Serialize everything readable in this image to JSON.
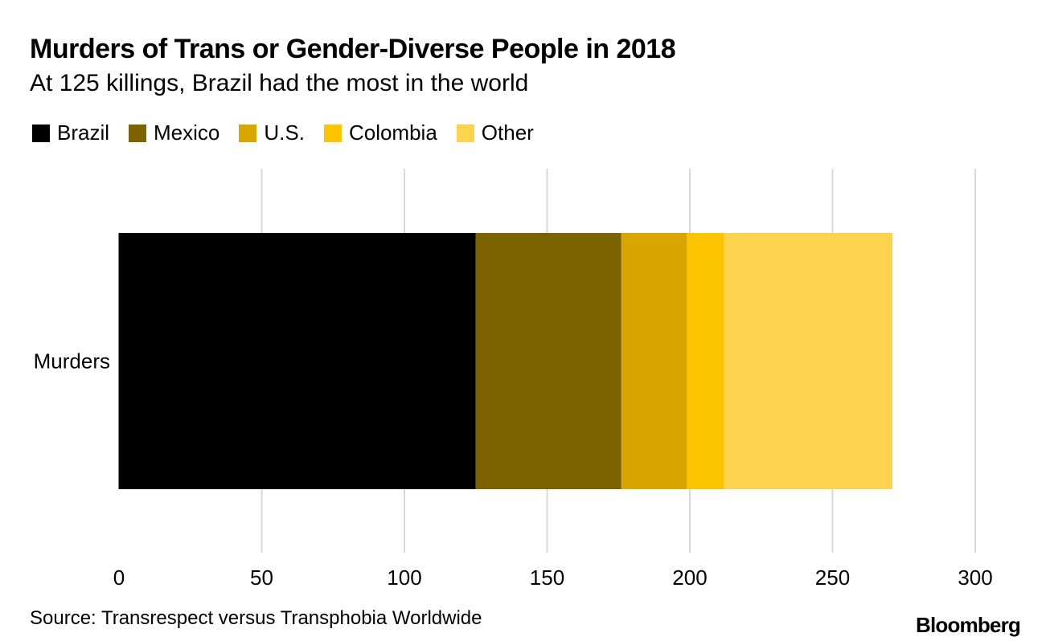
{
  "chart_data": {
    "type": "bar",
    "orientation": "horizontal",
    "stacked": true,
    "title": "Murders of Trans or Gender-Diverse People in 2018",
    "subtitle": "At 125 killings, Brazil had the most in the world",
    "categories": [
      "Murders"
    ],
    "series": [
      {
        "name": "Brazil",
        "values": [
          125
        ],
        "color": "#000000"
      },
      {
        "name": "Mexico",
        "values": [
          51
        ],
        "color": "#7d6200"
      },
      {
        "name": "U.S.",
        "values": [
          23
        ],
        "color": "#d9a600"
      },
      {
        "name": "Colombia",
        "values": [
          13
        ],
        "color": "#fdc400"
      },
      {
        "name": "Other",
        "values": [
          59
        ],
        "color": "#fdd34d"
      }
    ],
    "xlim": [
      0,
      300
    ],
    "xticks": [
      "0",
      "50",
      "100",
      "150",
      "200",
      "250",
      "300"
    ],
    "grid": true,
    "legend_position": "top-left"
  },
  "footer": {
    "source": "Source: Transrespect versus Transphobia Worldwide",
    "logo": "Bloomberg"
  }
}
